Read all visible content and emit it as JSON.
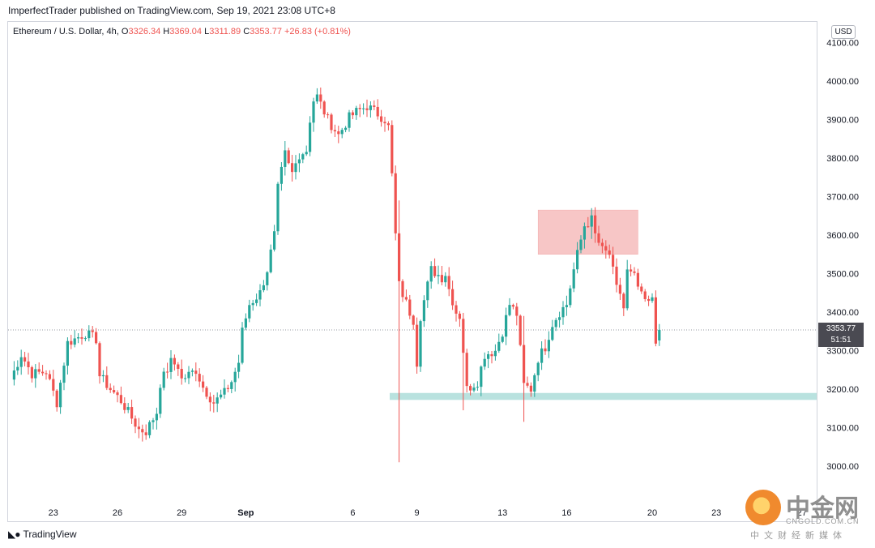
{
  "header": {
    "publisher": "ImperfectTrader published on TradingView.com, Sep 19, 2021 23:08 UTC+8"
  },
  "symbol": {
    "name": "Ethereum / U.S. Dollar, 4h,",
    "open_label": "O",
    "open": "3326.34",
    "high_label": "H",
    "high": "3369.04",
    "low_label": "L",
    "low": "3311.89",
    "close_label": "C",
    "close": "3353.77",
    "change": "+26.83 (+0.81%)"
  },
  "currency": "USD",
  "price_tag": {
    "price": "3353.77",
    "countdown": "51:51"
  },
  "footer": {
    "brand": "TradingView"
  },
  "watermark": {
    "cn": "中金网",
    "en": "CNGOLD.COM.CN",
    "sub": "中文财经新媒体"
  },
  "colors": {
    "up": "#26a69a",
    "down": "#ef5350",
    "resistance_zone": "#f7c6c6",
    "support_zone": "#b9e2df",
    "price_line": "#9598a1"
  },
  "chart_data": {
    "type": "candlestick",
    "title": "Ethereum / U.S. Dollar, 4h",
    "ylim": [
      2940,
      4160
    ],
    "y_ticks": [
      "4100.00",
      "4000.00",
      "3900.00",
      "3800.00",
      "3700.00",
      "3600.00",
      "3500.00",
      "3400.00",
      "3300.00",
      "3200.00",
      "3100.00",
      "3000.00"
    ],
    "y_tick_values": [
      4100,
      4000,
      3900,
      3800,
      3700,
      3600,
      3500,
      3400,
      3300,
      3200,
      3100,
      3000
    ],
    "x_ticks": [
      {
        "label": "23",
        "bar": 12
      },
      {
        "label": "26",
        "bar": 30
      },
      {
        "label": "29",
        "bar": 48
      },
      {
        "label": "Sep",
        "bar": 66
      },
      {
        "label": "6",
        "bar": 96
      },
      {
        "label": "9",
        "bar": 114
      },
      {
        "label": "13",
        "bar": 138
      },
      {
        "label": "16",
        "bar": 156
      },
      {
        "label": "20",
        "bar": 180
      },
      {
        "label": "23",
        "bar": 198
      },
      {
        "label": "27",
        "bar": 222
      }
    ],
    "last_price": 3353.77,
    "resistance_zone": {
      "bar_start": 148,
      "bar_end": 176,
      "price_low": 3550,
      "price_high": 3665
    },
    "support_zone": {
      "bar_start": 106,
      "bar_end": 228,
      "price_low": 3172,
      "price_high": 3190
    },
    "ohlc_legend": {
      "open": 3326.34,
      "high": 3369.04,
      "low": 3311.89,
      "close": 3353.77,
      "change": 26.83,
      "change_pct": 0.81
    },
    "path": [
      [
        0,
        3225
      ],
      [
        3,
        3290
      ],
      [
        6,
        3240
      ],
      [
        10,
        3245
      ],
      [
        13,
        3165
      ],
      [
        16,
        3320
      ],
      [
        21,
        3345
      ],
      [
        24,
        3330
      ],
      [
        25,
        3235
      ],
      [
        28,
        3200
      ],
      [
        31,
        3170
      ],
      [
        36,
        3095
      ],
      [
        38,
        3090
      ],
      [
        41,
        3140
      ],
      [
        42,
        3215
      ],
      [
        45,
        3270
      ],
      [
        47,
        3260
      ],
      [
        48,
        3225
      ],
      [
        52,
        3250
      ],
      [
        54,
        3205
      ],
      [
        57,
        3165
      ],
      [
        60,
        3190
      ],
      [
        62,
        3220
      ],
      [
        64,
        3270
      ],
      [
        65,
        3350
      ],
      [
        67,
        3420
      ],
      [
        70,
        3450
      ],
      [
        72,
        3510
      ],
      [
        74,
        3600
      ],
      [
        75,
        3720
      ],
      [
        77,
        3810
      ],
      [
        78,
        3780
      ],
      [
        79,
        3760
      ],
      [
        80,
        3785
      ],
      [
        81,
        3810
      ],
      [
        83,
        3820
      ],
      [
        84,
        3900
      ],
      [
        85,
        3950
      ],
      [
        86,
        3960
      ],
      [
        89,
        3900
      ],
      [
        92,
        3860
      ],
      [
        95,
        3905
      ],
      [
        97,
        3920
      ],
      [
        100,
        3935
      ],
      [
        103,
        3915
      ],
      [
        105,
        3900
      ],
      [
        106,
        3880
      ],
      [
        107,
        3755
      ],
      [
        108,
        3600
      ],
      [
        109,
        3470
      ],
      [
        112,
        3400
      ],
      [
        113,
        3380
      ],
      [
        114,
        3270
      ],
      [
        115,
        3390
      ],
      [
        117,
        3470
      ],
      [
        118,
        3510
      ],
      [
        121,
        3490
      ],
      [
        122,
        3500
      ],
      [
        123,
        3460
      ],
      [
        125,
        3400
      ],
      [
        126,
        3390
      ],
      [
        127,
        3300
      ],
      [
        128,
        3200
      ],
      [
        131,
        3220
      ],
      [
        133,
        3290
      ],
      [
        136,
        3300
      ],
      [
        138,
        3350
      ],
      [
        140,
        3420
      ],
      [
        142,
        3395
      ],
      [
        144,
        3210
      ],
      [
        146,
        3200
      ],
      [
        148,
        3280
      ],
      [
        150,
        3310
      ],
      [
        152,
        3370
      ],
      [
        154,
        3400
      ],
      [
        156,
        3420
      ],
      [
        158,
        3510
      ],
      [
        159,
        3550
      ],
      [
        161,
        3625
      ],
      [
        163,
        3640
      ],
      [
        164,
        3600
      ],
      [
        166,
        3560
      ],
      [
        168,
        3550
      ],
      [
        170,
        3460
      ],
      [
        171,
        3450
      ],
      [
        172,
        3410
      ],
      [
        173,
        3505
      ],
      [
        175,
        3490
      ],
      [
        177,
        3440
      ],
      [
        179,
        3420
      ],
      [
        180,
        3440
      ],
      [
        181,
        3330
      ],
      [
        182,
        3353.77
      ]
    ],
    "big_wicks": [
      {
        "bar": 109,
        "high": 3690,
        "low": 3010
      },
      {
        "bar": 114,
        "high": 3340,
        "low": 3240
      },
      {
        "bar": 127,
        "high": 3380,
        "low": 3145
      },
      {
        "bar": 144,
        "high": 3390,
        "low": 3115
      },
      {
        "bar": 163,
        "high": 3670,
        "low": 3590
      }
    ]
  }
}
